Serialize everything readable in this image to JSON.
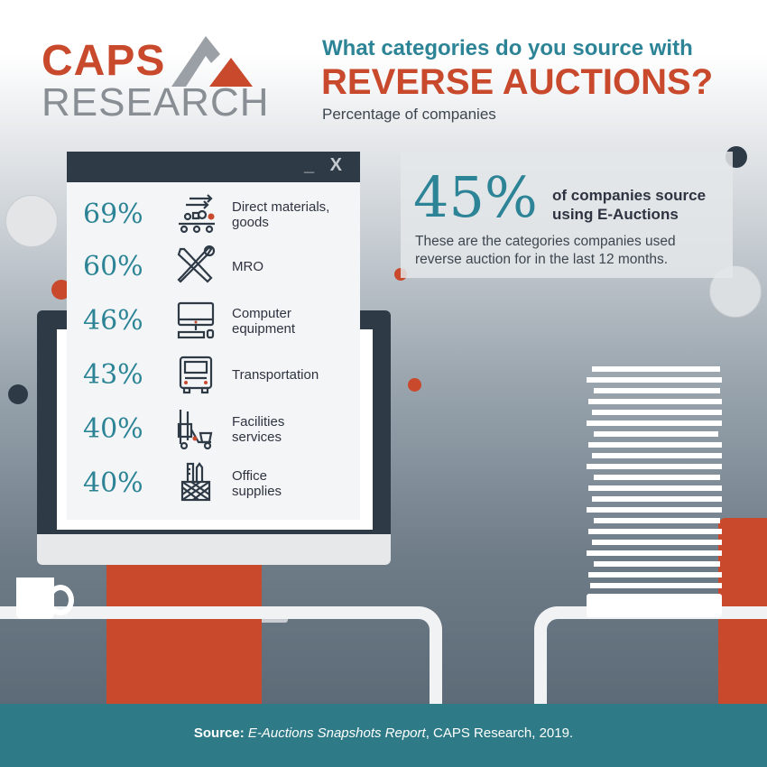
{
  "logo": {
    "line1": "CAPS",
    "line2": "RESEARCH"
  },
  "header": {
    "question_line1": "What categories do you source with",
    "question_line2": "REVERSE AUCTIONS?",
    "subtitle": "Percentage of companies"
  },
  "window": {
    "controls": "_ X",
    "categories": [
      {
        "percent": "69%",
        "label_line1": "Direct materials,",
        "label_line2": "goods",
        "icon": "conveyor-parts-icon"
      },
      {
        "percent": "60%",
        "label_line1": "MRO",
        "label_line2": "",
        "icon": "wrench-screwdriver-icon"
      },
      {
        "percent": "46%",
        "label_line1": "Computer",
        "label_line2": "equipment",
        "icon": "computer-icon"
      },
      {
        "percent": "43%",
        "label_line1": "Transportation",
        "label_line2": "",
        "icon": "truck-icon"
      },
      {
        "percent": "40%",
        "label_line1": "Facilities",
        "label_line2": "services",
        "icon": "cleaning-cart-icon"
      },
      {
        "percent": "40%",
        "label_line1": "Office",
        "label_line2": "supplies",
        "icon": "pencil-cup-icon"
      }
    ]
  },
  "stat": {
    "big_number": "45%",
    "line1": "of companies source",
    "line2": "using E-Auctions",
    "description": "These are the categories companies used reverse auction for in the last 12 months."
  },
  "footer": {
    "source_label": "Source:",
    "source_title": "E-Auctions Snapshots Report",
    "source_rest": ", CAPS Research, 2019."
  },
  "colors": {
    "teal": "#2c8496",
    "orange": "#c8492c",
    "navy": "#2f3a47",
    "footer": "#2e7b87"
  }
}
